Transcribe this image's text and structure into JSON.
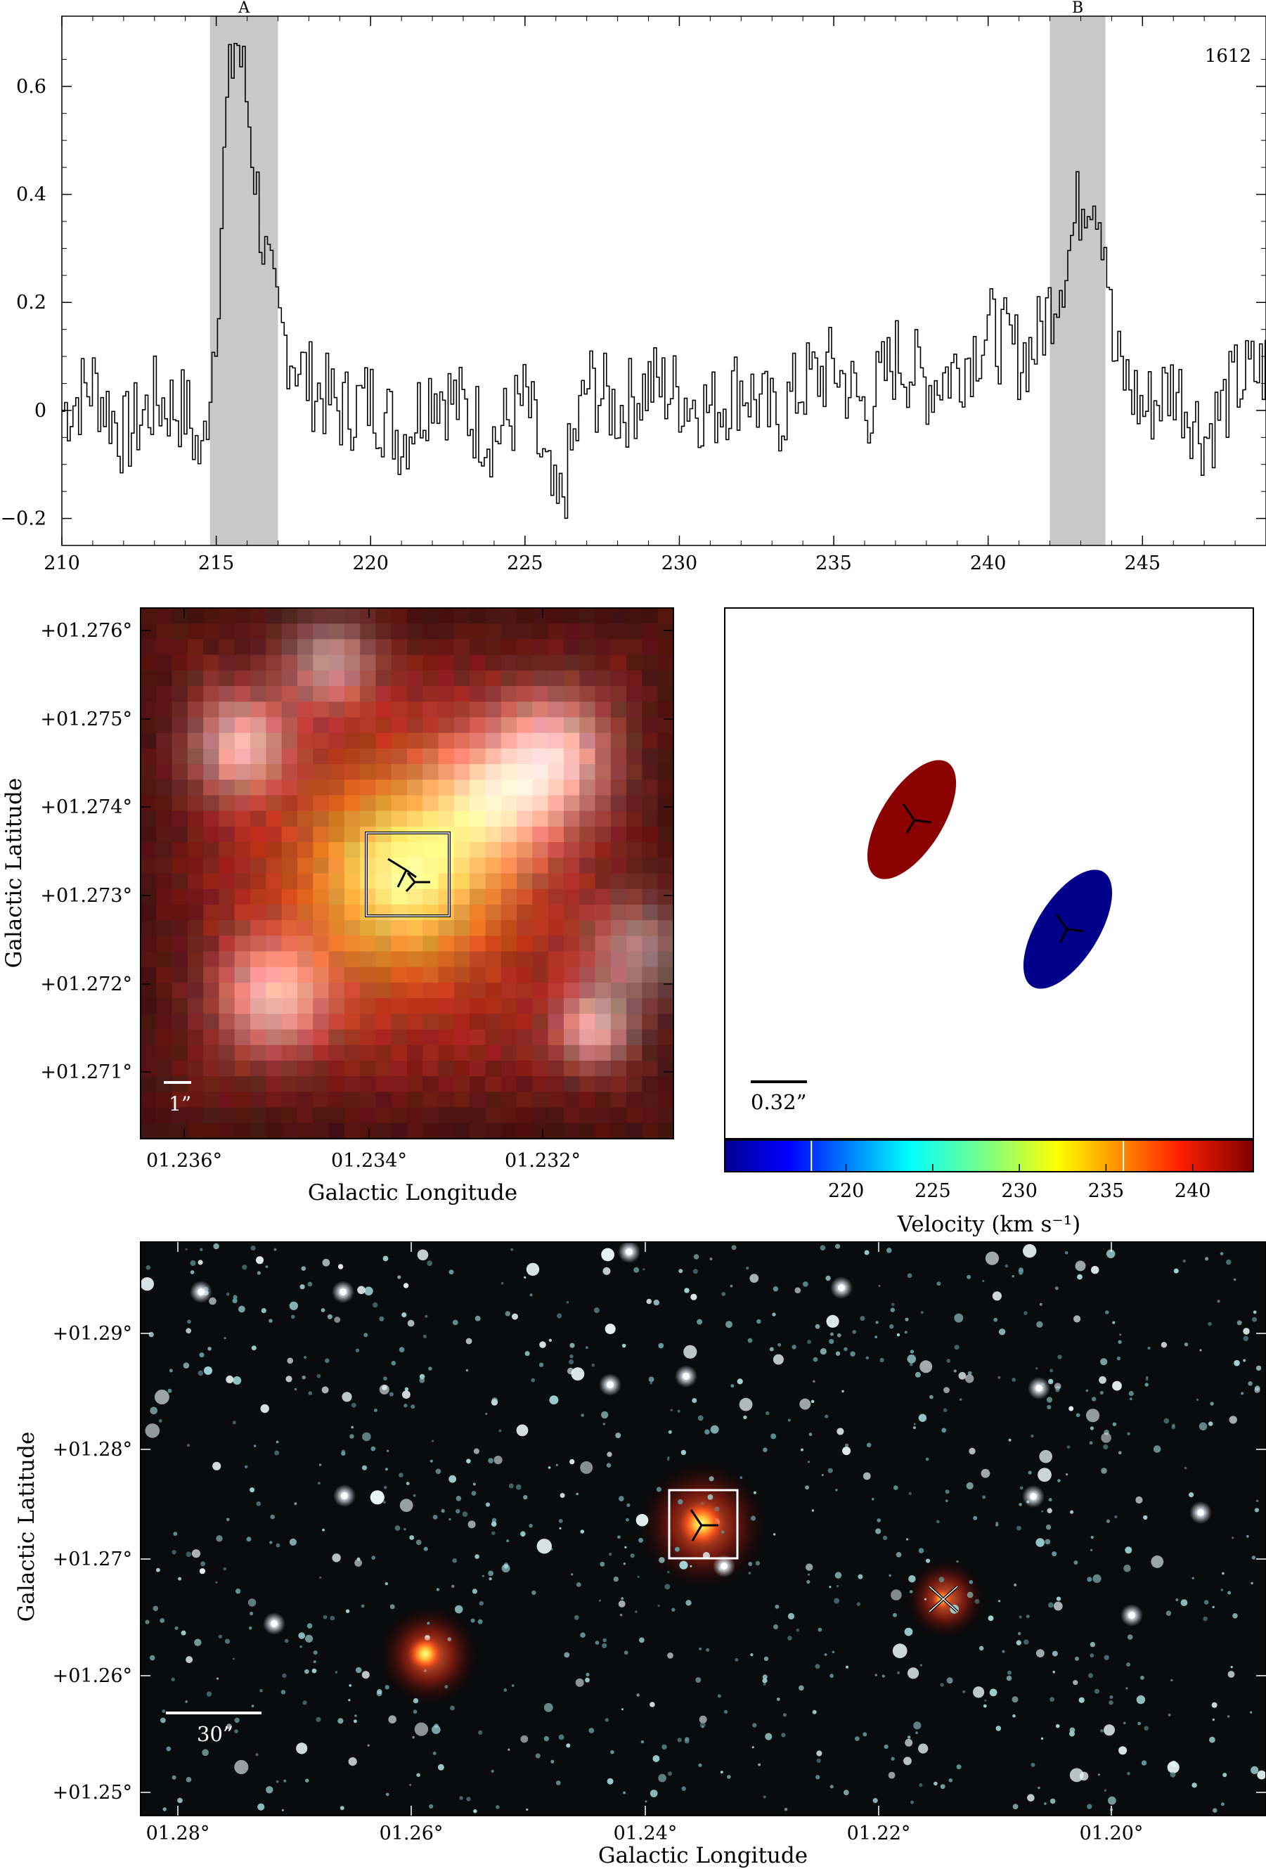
{
  "spectrum": {
    "label": "1612",
    "regions": [
      {
        "label": "A",
        "from": 214.8,
        "to": 217.0
      },
      {
        "label": "B",
        "from": 242.0,
        "to": 243.8
      }
    ],
    "xlim": [
      210,
      249
    ],
    "ylim": [
      -0.25,
      0.73
    ],
    "xticks": [
      "210",
      "215",
      "220",
      "225",
      "230",
      "235",
      "240",
      "245"
    ],
    "yticks": [
      "-0.2",
      "0",
      "0.2",
      "0.4",
      "0.6"
    ]
  },
  "zoom_panel": {
    "ylabel": "Galactic Latitude",
    "xlabel": "Galactic Longitude",
    "yticks": [
      "+01.276°",
      "+01.275°",
      "+01.274°",
      "+01.273°",
      "+01.272°",
      "+01.271°"
    ],
    "xticks": [
      "01.236°",
      "01.234°",
      "01.232°"
    ],
    "scalebar": "1”"
  },
  "maser_panel": {
    "scalebar": "0.32”",
    "colorbar_label": "Velocity (km s⁻¹)",
    "colorbar_ticks": [
      "220",
      "225",
      "230",
      "235",
      "240"
    ],
    "colorbar_range": [
      213,
      243.5
    ],
    "spots": [
      {
        "color": "#8b0000",
        "velocity": 243
      },
      {
        "color": "#00008b",
        "velocity": 215
      }
    ]
  },
  "field_panel": {
    "ylabel": "Galactic Latitude",
    "xlabel": "Galactic Longitude",
    "yticks": [
      "+01.29°",
      "+01.28°",
      "+01.27°",
      "+01.26°",
      "+01.25°"
    ],
    "xticks": [
      "01.28°",
      "01.26°",
      "01.24°",
      "01.22°",
      "01.20°"
    ],
    "scalebar": "30”"
  },
  "chart_data": {
    "type": "line",
    "title": "",
    "xlabel": "",
    "ylabel": "",
    "xlim": [
      210,
      249
    ],
    "ylim": [
      -0.25,
      0.73
    ],
    "grid": false,
    "series": [
      {
        "name": "1612",
        "x": [
          210,
          211,
          212,
          213,
          214,
          214.5,
          215,
          215.3,
          215.6,
          215.9,
          216.2,
          216.5,
          216.8,
          217,
          217.5,
          218,
          219,
          220,
          221,
          222,
          223,
          224,
          225,
          226,
          227,
          228,
          229,
          230,
          231,
          232,
          233,
          234,
          235,
          236,
          237,
          238,
          239,
          240,
          241,
          241.5,
          242,
          242.3,
          242.6,
          242.9,
          243.2,
          243.5,
          243.8,
          244,
          245,
          246,
          247,
          248,
          249
        ],
        "y": [
          0.0,
          0.05,
          -0.05,
          0.02,
          0.0,
          -0.1,
          0.2,
          0.55,
          0.7,
          0.6,
          0.45,
          0.3,
          0.2,
          0.15,
          0.1,
          0.05,
          0.0,
          0.02,
          -0.05,
          0.05,
          0.0,
          -0.05,
          0.02,
          -0.2,
          0.05,
          0.0,
          0.05,
          0.03,
          0.0,
          0.05,
          -0.02,
          0.05,
          0.08,
          0.0,
          0.1,
          0.05,
          0.08,
          0.15,
          0.1,
          0.12,
          0.2,
          0.25,
          0.3,
          0.38,
          0.42,
          0.4,
          0.3,
          0.1,
          0.0,
          0.05,
          -0.05,
          0.05,
          0.08
        ]
      }
    ]
  }
}
